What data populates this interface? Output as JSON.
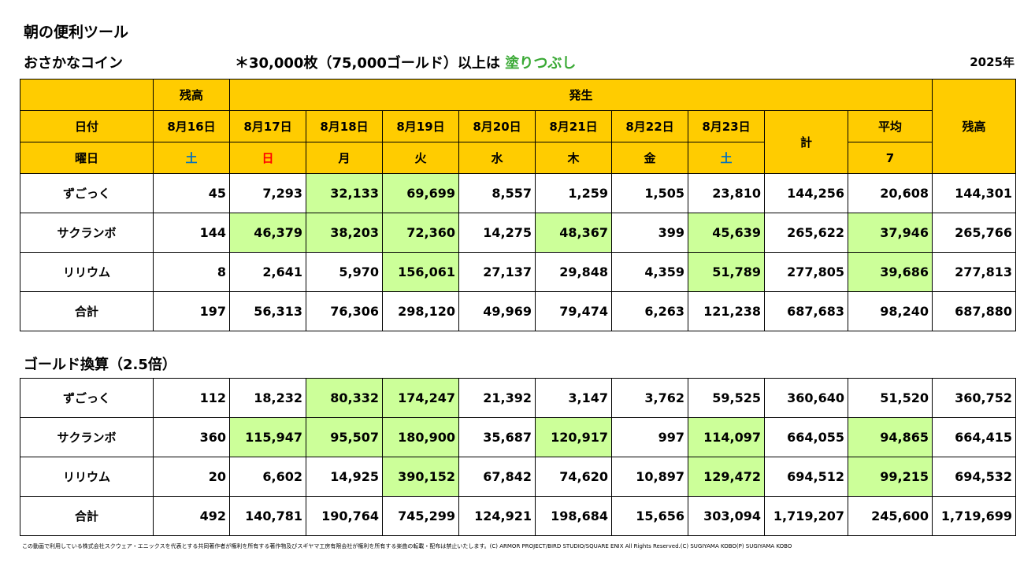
{
  "title": "朝の便利ツール",
  "subtitle": "おさかなコイン",
  "note_prefix": "＊30,000枚（75,000ゴールド）以上は",
  "note_highlight": "塗りつぶし",
  "year": "2025年",
  "colors": {
    "header_bg": "#ffcc00",
    "highlight": "#ccff99",
    "saturday": "#0070c0",
    "sunday": "#ff0000",
    "note_green": "#3aa935"
  },
  "header": {
    "balance_label": "残高",
    "occurrence_label": "発生",
    "final_balance_label": "残高",
    "date_label": "日付",
    "weekday_label": "曜日",
    "total_label": "計",
    "average_label": "平均",
    "average_days": "7",
    "dates": [
      "8月16日",
      "8月17日",
      "8月18日",
      "8月19日",
      "8月20日",
      "8月21日",
      "8月22日",
      "8月23日"
    ],
    "weekdays": [
      "土",
      "日",
      "月",
      "火",
      "水",
      "木",
      "金",
      "土"
    ]
  },
  "coin_table": {
    "rows": [
      {
        "name": "ずごっく",
        "values": [
          "45",
          "7,293",
          "32,133",
          "69,699",
          "8,557",
          "1,259",
          "1,505",
          "23,810",
          "144,256",
          "20,608",
          "144,301"
        ]
      },
      {
        "name": "サクランボ",
        "values": [
          "144",
          "46,379",
          "38,203",
          "72,360",
          "14,275",
          "48,367",
          "399",
          "45,639",
          "265,622",
          "37,946",
          "265,766"
        ]
      },
      {
        "name": "リリウム",
        "values": [
          "8",
          "2,641",
          "5,970",
          "156,061",
          "27,137",
          "29,848",
          "4,359",
          "51,789",
          "277,805",
          "39,686",
          "277,813"
        ]
      },
      {
        "name": "合計",
        "values": [
          "197",
          "56,313",
          "76,306",
          "298,120",
          "49,969",
          "79,474",
          "6,263",
          "121,238",
          "687,683",
          "98,240",
          "687,880"
        ]
      }
    ]
  },
  "gold_title": "ゴールド換算（2.5倍）",
  "gold_table": {
    "rows": [
      {
        "name": "ずごっく",
        "values": [
          "112",
          "18,232",
          "80,332",
          "174,247",
          "21,392",
          "3,147",
          "3,762",
          "59,525",
          "360,640",
          "51,520",
          "360,752"
        ]
      },
      {
        "name": "サクランボ",
        "values": [
          "360",
          "115,947",
          "95,507",
          "180,900",
          "35,687",
          "120,917",
          "997",
          "114,097",
          "664,055",
          "94,865",
          "664,415"
        ]
      },
      {
        "name": "リリウム",
        "values": [
          "20",
          "6,602",
          "14,925",
          "390,152",
          "67,842",
          "74,620",
          "10,897",
          "129,472",
          "694,512",
          "99,215",
          "694,532"
        ]
      },
      {
        "name": "合計",
        "values": [
          "492",
          "140,781",
          "190,764",
          "745,299",
          "124,921",
          "198,684",
          "15,656",
          "303,094",
          "1,719,207",
          "245,600",
          "1,719,699"
        ]
      }
    ]
  },
  "footer": "この動画で利用している株式会社スクウェア・エニックスを代表とする共同著作者が権利を所有する著作物及びスギヤマ工房有限会社が権利を所有する楽曲の転載・配布は禁止いたします。(C) ARMOR PROJECT/BIRD STUDIO/SQUARE ENIX All Rights Reserved.(C) SUGIYAMA KOBO(P) SUGIYAMA KOBO"
}
